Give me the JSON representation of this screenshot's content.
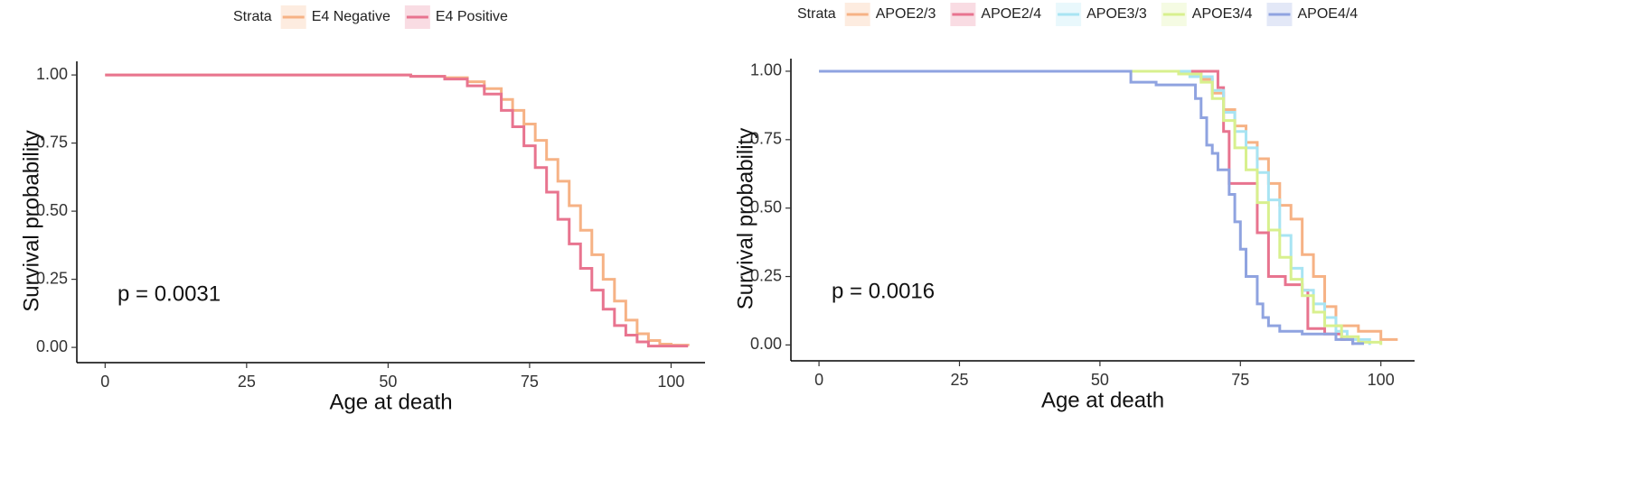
{
  "chart_data": [
    {
      "type": "line",
      "step": true,
      "xlabel": "Age at death",
      "ylabel": "Survival probability",
      "annotation": "p = 0.0031",
      "legend_title": "Strata",
      "legend": "top",
      "xlim": [
        -5,
        106
      ],
      "ylim": [
        -0.056,
        1.05
      ],
      "xticks": [
        0,
        25,
        50,
        75,
        100
      ],
      "yticks": [
        {
          "value": 0,
          "label": "0.00"
        },
        {
          "value": 0.25,
          "label": "0.25"
        },
        {
          "value": 0.5,
          "label": "0.50"
        },
        {
          "value": 0.75,
          "label": "0.75"
        },
        {
          "value": 1,
          "label": "1.00"
        }
      ],
      "series": [
        {
          "name": "E4 Negative",
          "color": "#f6b285",
          "x": [
            0,
            42,
            54,
            60,
            64,
            67,
            70,
            72,
            74,
            76,
            78,
            80,
            82,
            84,
            86,
            88,
            90,
            92,
            94,
            96,
            98,
            100,
            103
          ],
          "values": [
            1,
            1,
            0.995,
            0.99,
            0.975,
            0.95,
            0.91,
            0.87,
            0.82,
            0.76,
            0.69,
            0.61,
            0.52,
            0.43,
            0.34,
            0.25,
            0.17,
            0.1,
            0.05,
            0.025,
            0.012,
            0.008,
            0.005
          ]
        },
        {
          "name": "E4 Positive",
          "color": "#e8748f",
          "x": [
            0,
            54,
            60,
            64,
            67,
            70,
            72,
            74,
            76,
            78,
            80,
            82,
            84,
            86,
            88,
            90,
            92,
            94,
            96,
            103
          ],
          "values": [
            1,
            0.995,
            0.985,
            0.96,
            0.93,
            0.87,
            0.81,
            0.74,
            0.66,
            0.57,
            0.47,
            0.38,
            0.29,
            0.21,
            0.14,
            0.08,
            0.045,
            0.02,
            0.005,
            0.005
          ]
        }
      ]
    },
    {
      "type": "line",
      "step": true,
      "xlabel": "Age at death",
      "ylabel": "Survival probability",
      "annotation": "p = 0.0016",
      "legend_title": "Strata",
      "legend": "top",
      "xlim": [
        -5,
        106
      ],
      "ylim": [
        -0.058,
        1.046
      ],
      "xticks": [
        0,
        25,
        50,
        75,
        100
      ],
      "yticks": [
        {
          "value": 0,
          "label": "0.00"
        },
        {
          "value": 0.25,
          "label": "0.25"
        },
        {
          "value": 0.5,
          "label": "0.50"
        },
        {
          "value": 0.75,
          "label": "0.75"
        },
        {
          "value": 1,
          "label": "1.00"
        }
      ],
      "series": [
        {
          "name": "APOE2/3",
          "color": "#f6b285",
          "x": [
            0,
            62,
            68,
            70,
            72,
            74,
            76,
            78,
            80,
            82,
            84,
            86,
            88,
            90,
            92,
            96,
            100,
            103
          ],
          "values": [
            1,
            1,
            0.97,
            0.92,
            0.86,
            0.8,
            0.74,
            0.68,
            0.59,
            0.51,
            0.46,
            0.33,
            0.25,
            0.14,
            0.07,
            0.05,
            0.02,
            0.02
          ]
        },
        {
          "name": "APOE2/4",
          "color": "#e8748f",
          "x": [
            0,
            70,
            71,
            72,
            73,
            77,
            78,
            80,
            83,
            86,
            87,
            90,
            93,
            95
          ],
          "values": [
            1,
            1,
            0.94,
            0.78,
            0.59,
            0.59,
            0.41,
            0.25,
            0.22,
            0.2,
            0.06,
            0.04,
            0.02,
            0
          ]
        },
        {
          "name": "APOE3/3",
          "color": "#a8e4f3",
          "x": [
            0,
            60,
            66,
            70,
            72,
            74,
            76,
            78,
            80,
            82,
            84,
            86,
            88,
            90,
            92,
            94,
            98
          ],
          "values": [
            1,
            1,
            0.98,
            0.93,
            0.85,
            0.78,
            0.72,
            0.63,
            0.53,
            0.4,
            0.28,
            0.2,
            0.15,
            0.1,
            0.05,
            0.02,
            0
          ]
        },
        {
          "name": "APOE3/4",
          "color": "#d8f08e",
          "x": [
            0,
            60,
            64,
            68,
            70,
            72,
            74,
            76,
            78,
            80,
            82,
            84,
            86,
            88,
            90,
            93,
            96,
            100
          ],
          "values": [
            1,
            1,
            0.99,
            0.96,
            0.9,
            0.82,
            0.72,
            0.64,
            0.52,
            0.42,
            0.32,
            0.24,
            0.18,
            0.12,
            0.07,
            0.03,
            0.01,
            0
          ]
        },
        {
          "name": "APOE4/4",
          "color": "#8fa3e0",
          "x": [
            0,
            55,
            55.5,
            60,
            67,
            68,
            69,
            70,
            71,
            73,
            74,
            75,
            76,
            78,
            79,
            80,
            82,
            86,
            92,
            95,
            97
          ],
          "values": [
            1,
            1,
            0.96,
            0.95,
            0.9,
            0.83,
            0.73,
            0.7,
            0.64,
            0.55,
            0.45,
            0.35,
            0.25,
            0.15,
            0.1,
            0.07,
            0.05,
            0.04,
            0.02,
            0.005,
            0.005
          ]
        }
      ]
    }
  ]
}
